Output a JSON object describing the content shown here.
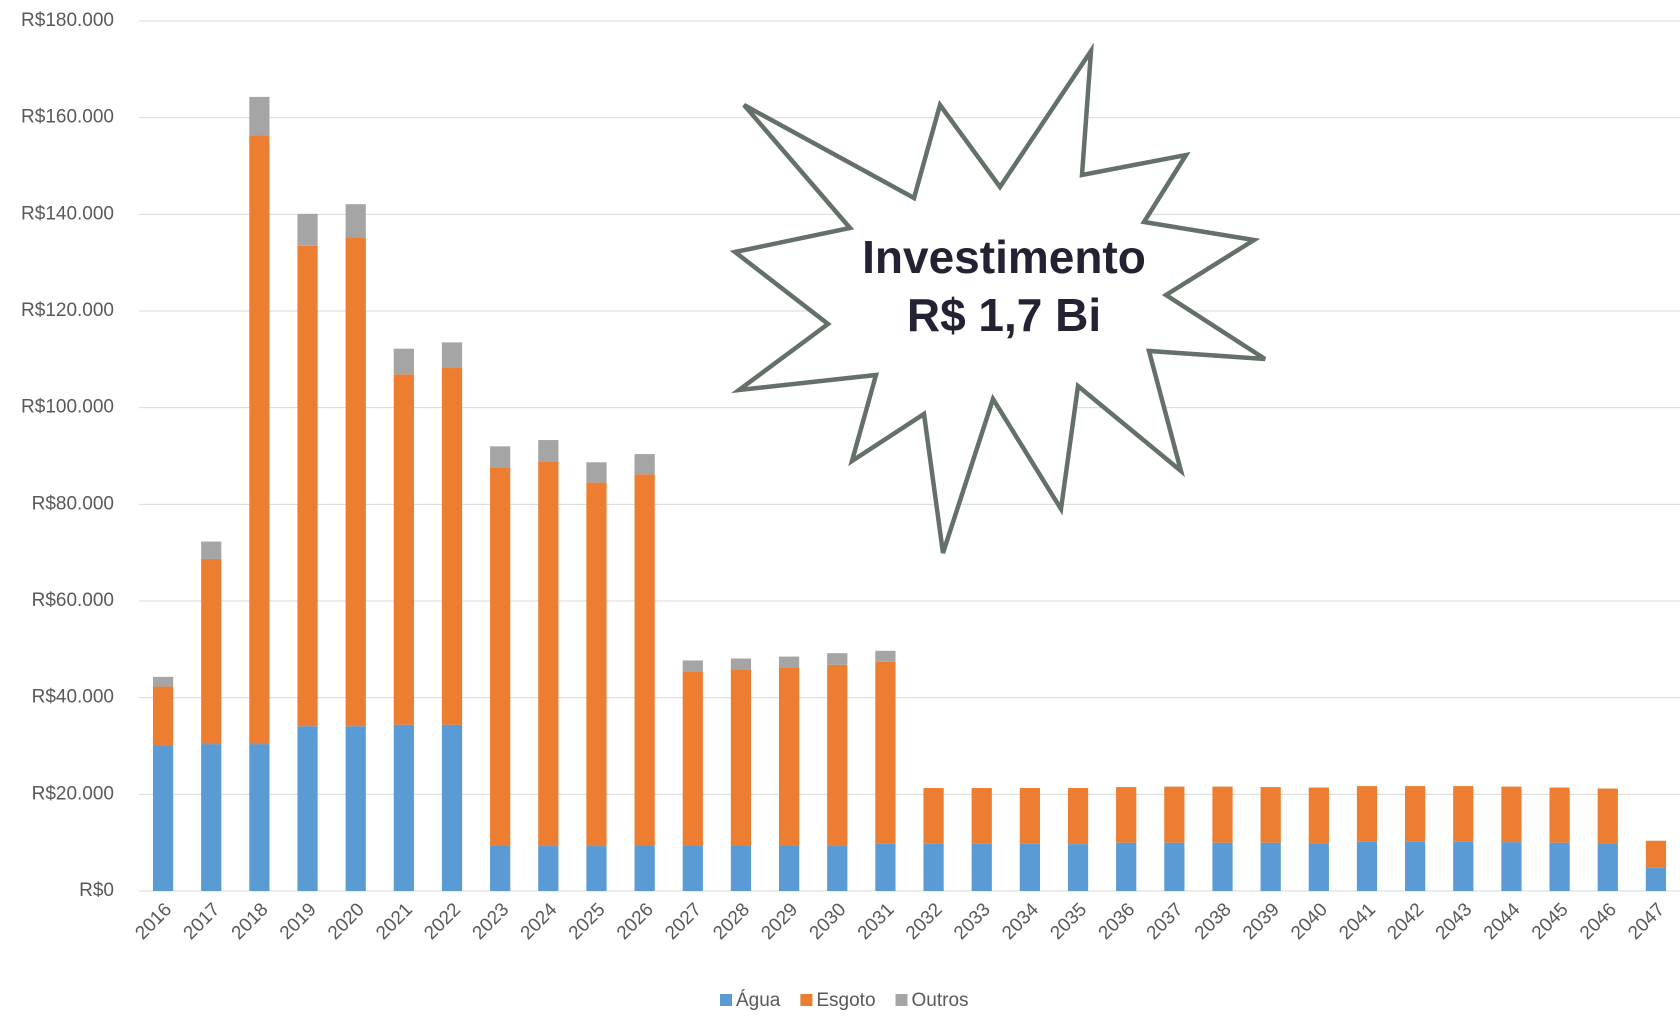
{
  "chart_data": {
    "type": "stacked_bar",
    "annotation": [
      "Investimento",
      "R$ 1,7 Bi"
    ],
    "categories": [
      "2016",
      "2017",
      "2018",
      "2019",
      "2020",
      "2021",
      "2022",
      "2023",
      "2024",
      "2025",
      "2026",
      "2027",
      "2028",
      "2029",
      "2030",
      "2031",
      "2032",
      "2033",
      "2034",
      "2035",
      "2036",
      "2037",
      "2038",
      "2039",
      "2040",
      "2041",
      "2042",
      "2043",
      "2044",
      "2045",
      "2046",
      "2047"
    ],
    "series": [
      {
        "name": "Água",
        "color": "#5b9bd5",
        "values": [
          30000,
          30400,
          30400,
          34100,
          34100,
          34400,
          34400,
          9500,
          9300,
          9300,
          9500,
          9500,
          9500,
          9500,
          9300,
          9800,
          9800,
          9800,
          9800,
          9700,
          10000,
          10000,
          10000,
          10000,
          9900,
          10200,
          10200,
          10200,
          10100,
          10000,
          9900,
          4900
        ]
      },
      {
        "name": "Esgoto",
        "color": "#ed7d31",
        "values": [
          12300,
          38300,
          125900,
          99400,
          101100,
          72500,
          73800,
          78100,
          79600,
          75200,
          76700,
          35900,
          36400,
          36800,
          37500,
          37600,
          11500,
          11500,
          11500,
          11600,
          11500,
          11600,
          11600,
          11500,
          11500,
          11500,
          11500,
          11500,
          11500,
          11400,
          11300,
          5500
        ]
      },
      {
        "name": "Outros",
        "color": "#a5a5a5",
        "values": [
          2000,
          3600,
          8000,
          6600,
          6900,
          5300,
          5300,
          4400,
          4400,
          4200,
          4200,
          2300,
          2200,
          2200,
          2400,
          2300,
          0,
          0,
          0,
          0,
          0,
          0,
          0,
          0,
          0,
          0,
          0,
          0,
          0,
          0,
          0,
          0
        ]
      }
    ],
    "ylim": [
      0,
      180000
    ],
    "yticks": [
      {
        "value": 0,
        "label": "R$0"
      },
      {
        "value": 20000,
        "label": "R$20.000"
      },
      {
        "value": 40000,
        "label": "R$40.000"
      },
      {
        "value": 60000,
        "label": "R$60.000"
      },
      {
        "value": 80000,
        "label": "R$80.000"
      },
      {
        "value": 100000,
        "label": "R$100.000"
      },
      {
        "value": 120000,
        "label": "R$120.000"
      },
      {
        "value": 140000,
        "label": "R$140.000"
      },
      {
        "value": 160000,
        "label": "R$160.000"
      },
      {
        "value": 180000,
        "label": "R$180.000"
      }
    ],
    "grid": true
  }
}
